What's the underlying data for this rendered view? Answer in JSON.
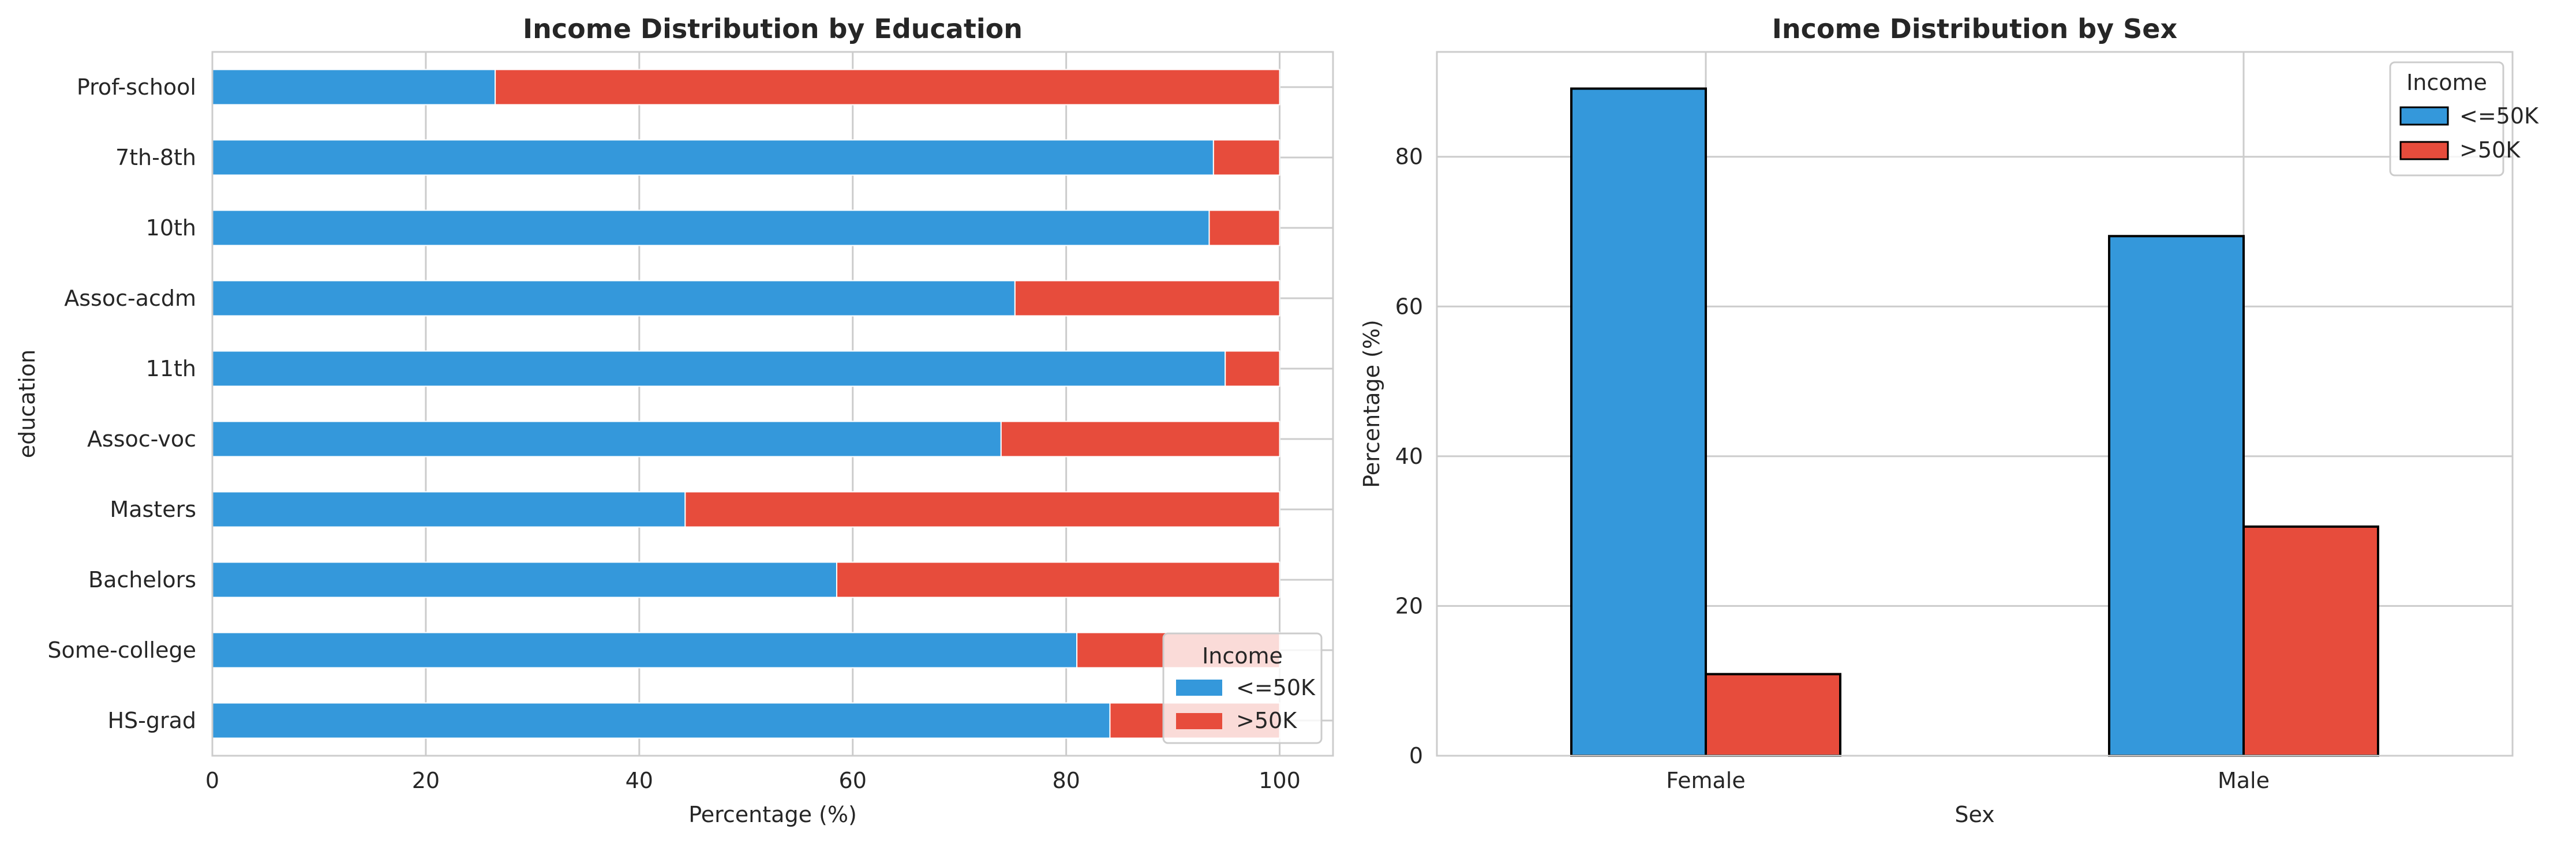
{
  "colors": {
    "le50k": "#3498db",
    "gt50k": "#e74c3c",
    "grid": "#cccccc",
    "axis_edge": "#cccccc",
    "text": "#262626"
  },
  "chart_data": [
    {
      "type": "bar",
      "orientation": "horizontal",
      "stacked": true,
      "title": "Income Distribution by Education",
      "xlabel": "Percentage (%)",
      "ylabel": "education",
      "xlim": [
        0,
        105
      ],
      "xticks": [
        0,
        20,
        40,
        60,
        80,
        100
      ],
      "grid": true,
      "legend": {
        "title": "Income",
        "placement": "lower-right"
      },
      "categories": [
        "HS-grad",
        "Some-college",
        "Bachelors",
        "Masters",
        "Assoc-voc",
        "11th",
        "Assoc-acdm",
        "10th",
        "7th-8th",
        "Prof-school"
      ],
      "series": [
        {
          "name": "<=50K",
          "color": "#3498db",
          "values": [
            84.1,
            81.0,
            58.5,
            44.3,
            73.9,
            94.9,
            75.2,
            93.4,
            93.8,
            26.5
          ]
        },
        {
          "name": ">50K",
          "color": "#e74c3c",
          "values": [
            15.9,
            19.0,
            41.5,
            55.7,
            26.1,
            5.1,
            24.8,
            6.6,
            6.2,
            73.5
          ]
        }
      ]
    },
    {
      "type": "bar",
      "orientation": "vertical",
      "stacked": false,
      "title": "Income Distribution by Sex",
      "xlabel": "Sex",
      "ylabel": "Percentage (%)",
      "ylim": [
        0,
        94
      ],
      "yticks": [
        0,
        20,
        40,
        60,
        80
      ],
      "grid": true,
      "legend": {
        "title": "Income",
        "placement": "upper-right"
      },
      "categories": [
        "Female",
        "Male"
      ],
      "series": [
        {
          "name": "<=50K",
          "color": "#3498db",
          "values": [
            89.1,
            69.4
          ]
        },
        {
          "name": ">50K",
          "color": "#e74c3c",
          "values": [
            10.9,
            30.6
          ]
        }
      ]
    }
  ]
}
